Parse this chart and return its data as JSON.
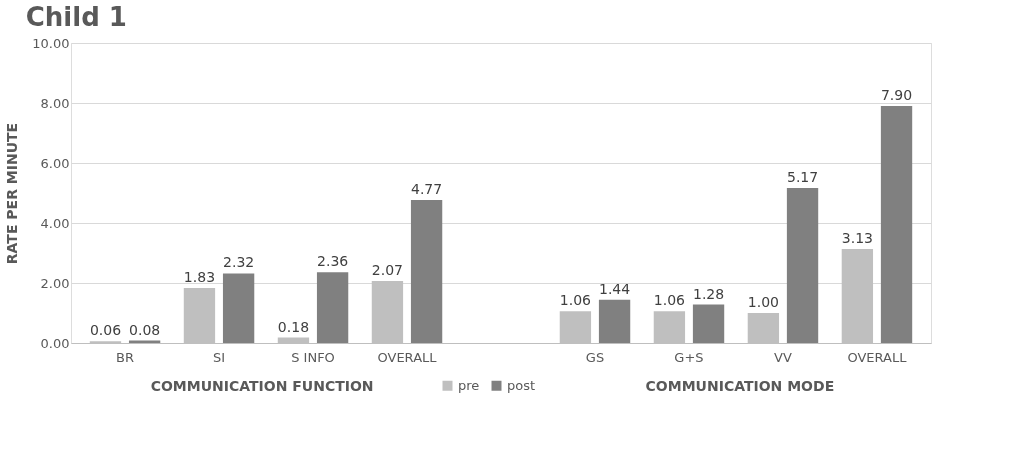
{
  "chart_data": {
    "type": "bar",
    "title": "Child 1",
    "ylabel": "RATE PER MINUTE",
    "categories": [
      "BR",
      "SI",
      "S INFO",
      "OVERALL",
      null,
      "GS",
      "G+S",
      "VV",
      "OVERALL"
    ],
    "series": [
      {
        "name": "pre",
        "color": "#bfbfbf",
        "values": [
          0.06,
          1.83,
          0.18,
          2.07,
          null,
          1.06,
          1.06,
          1.0,
          3.13
        ],
        "value_labels": [
          "0.06",
          "1.83",
          "0.18",
          "2.07",
          null,
          "1.06",
          "1.06",
          "1.00",
          "3.13"
        ]
      },
      {
        "name": "post",
        "color": "#808080",
        "values": [
          0.08,
          2.32,
          2.36,
          4.77,
          null,
          1.44,
          1.28,
          5.17,
          7.9
        ],
        "value_labels": [
          "0.08",
          "2.32",
          "2.36",
          "4.77",
          null,
          "1.44",
          "1.28",
          "5.17",
          "7.90"
        ]
      }
    ],
    "ylim": [
      0,
      10
    ],
    "yticks": [
      {
        "value": 0,
        "label": "0.00"
      },
      {
        "value": 2,
        "label": "2.00"
      },
      {
        "value": 4,
        "label": "4.00"
      },
      {
        "value": 6,
        "label": "6.00"
      },
      {
        "value": 8,
        "label": "8.00"
      },
      {
        "value": 10,
        "label": "10.00"
      }
    ],
    "grid": "y",
    "legend": "bottom",
    "annotations": [
      "COMMUNICATION FUNCTION",
      "COMMUNICATION MODE"
    ]
  }
}
